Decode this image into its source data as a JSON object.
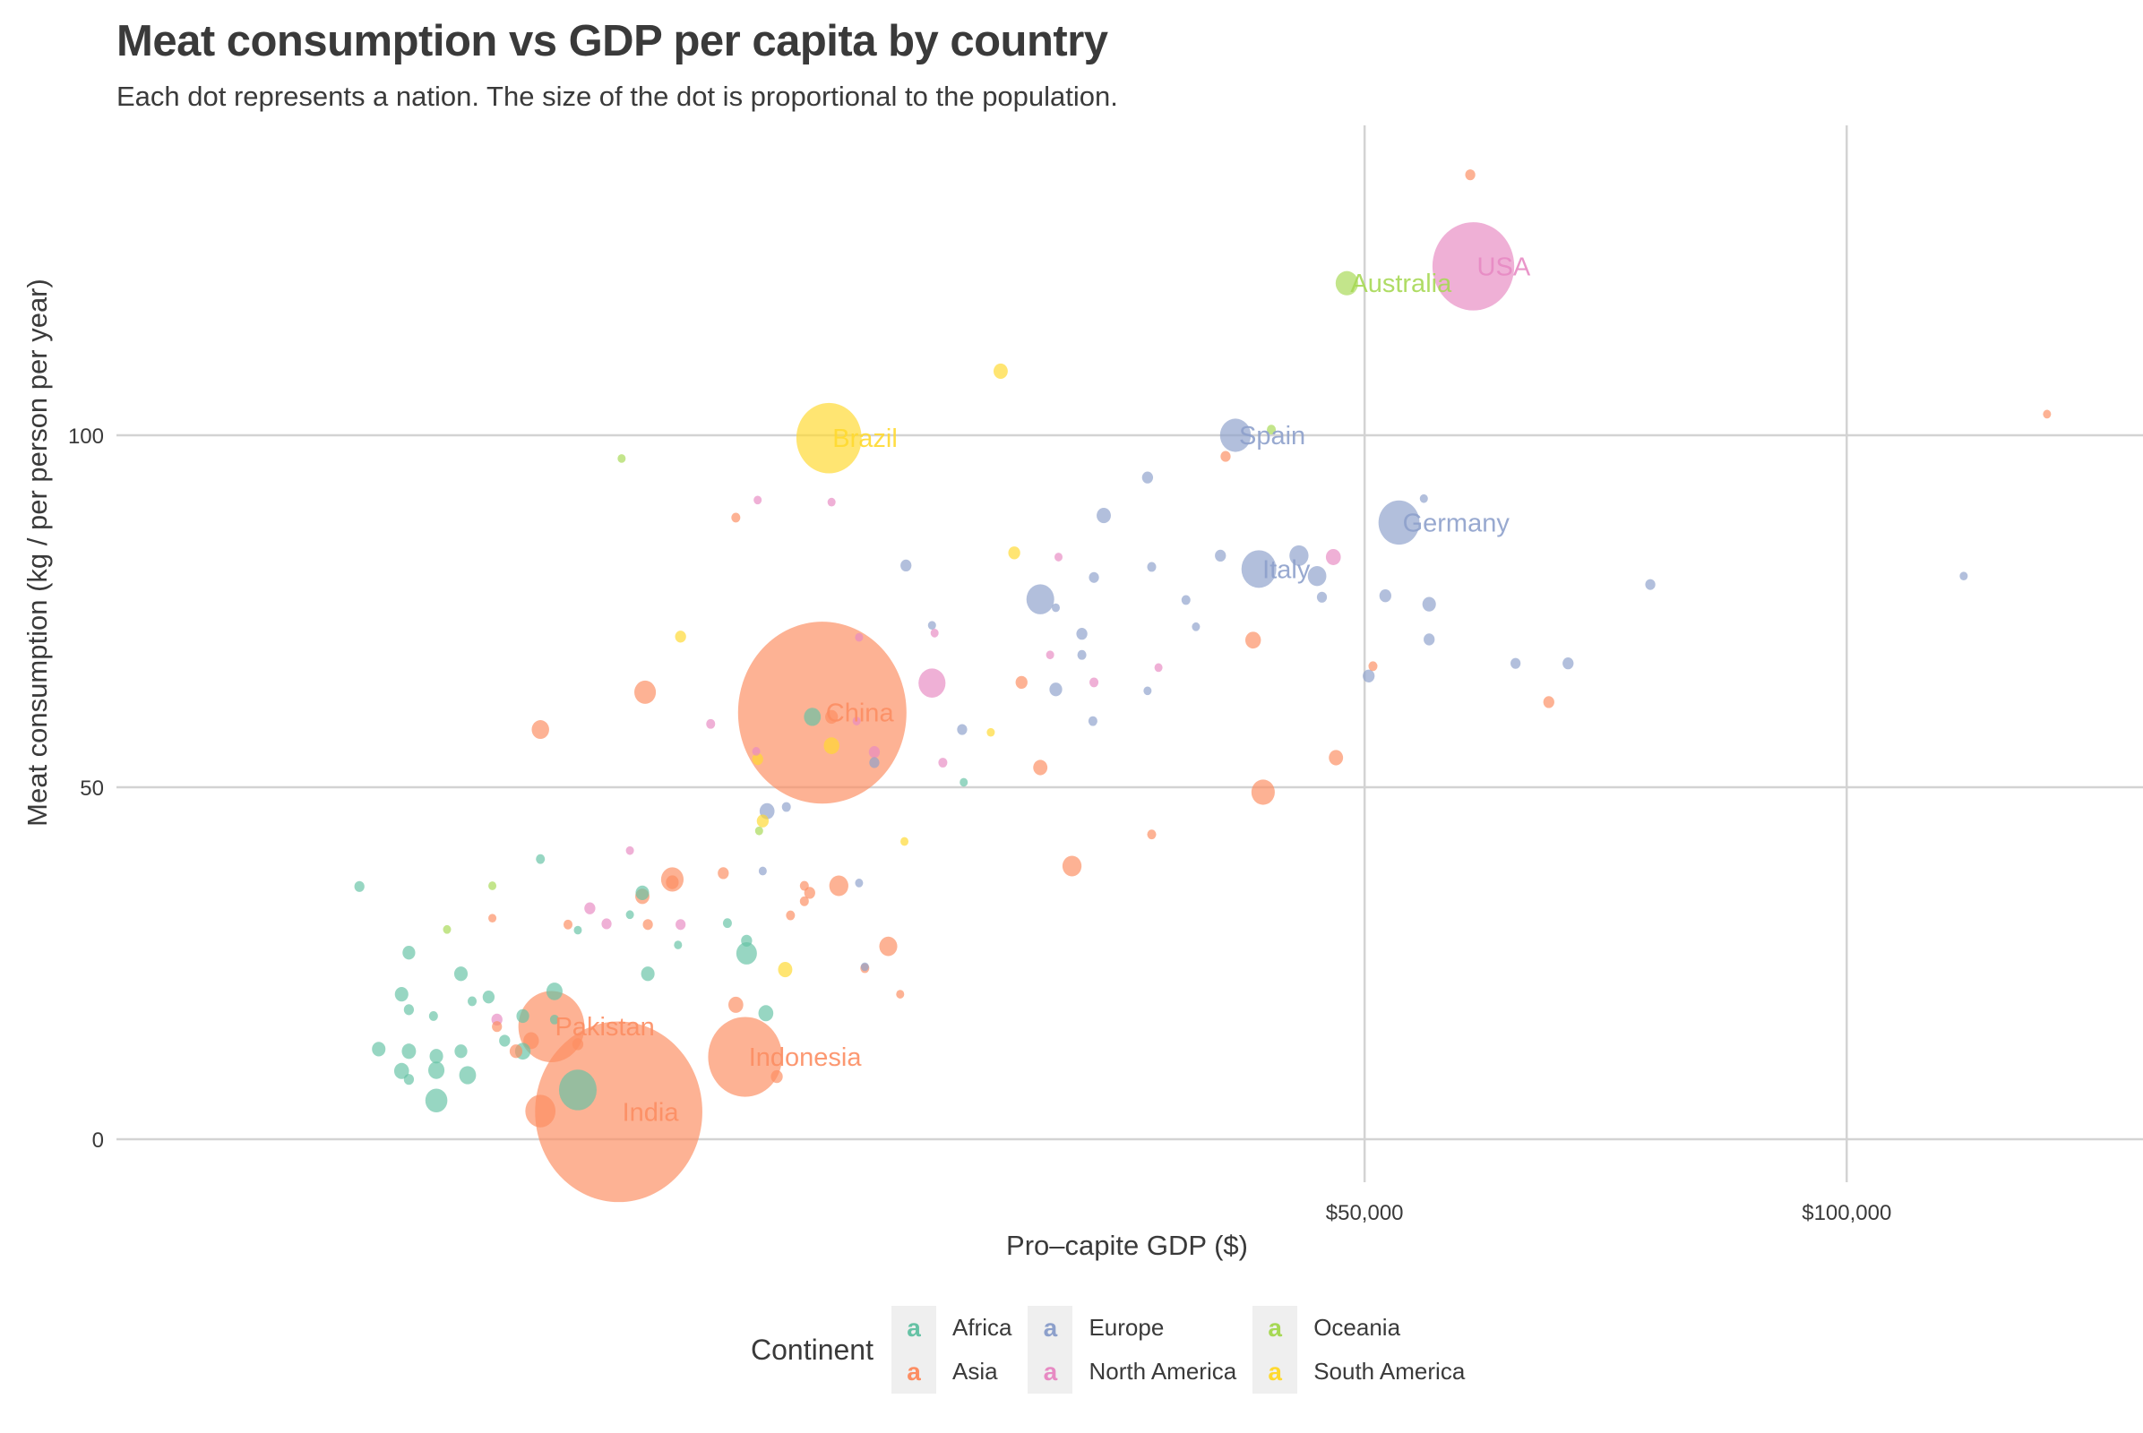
{
  "chart_data": {
    "type": "scatter",
    "title": "Meat consumption vs GDP per capita by country",
    "subtitle": "Each dot represents a nation. The size of the dot is proportional to the population.",
    "xlabel": "Pro–capite GDP ($)",
    "ylabel": "Meat consumption (kg / per person per year)",
    "x_scale": "sqrt",
    "xlim": [
      0,
      135000
    ],
    "ylim": [
      -7,
      137
    ],
    "x_ticks": [
      {
        "value": 50000,
        "label": "$50,000"
      },
      {
        "value": 100000,
        "label": "$100,000"
      }
    ],
    "y_ticks": [
      {
        "value": 0,
        "label": "0"
      },
      {
        "value": 50,
        "label": "50"
      },
      {
        "value": 100,
        "label": "100"
      }
    ],
    "grid": true,
    "size_variable": "population (millions)",
    "legend": {
      "title": "Continent",
      "placement": "bottom",
      "entries": [
        {
          "name": "Africa",
          "color": "#66c2a5",
          "glyph": "a"
        },
        {
          "name": "Asia",
          "color": "#fc8d62",
          "glyph": "a"
        },
        {
          "name": "Europe",
          "color": "#8da0cb",
          "glyph": "a"
        },
        {
          "name": "North America",
          "color": "#e78ac3",
          "glyph": "a"
        },
        {
          "name": "Oceania",
          "color": "#a6d854",
          "glyph": "a"
        },
        {
          "name": "South America",
          "color": "#ffd92f",
          "glyph": "a"
        }
      ]
    },
    "points_format": [
      "gdp_per_capita",
      "meat_kg",
      "population_millions",
      "continent",
      "label"
    ],
    "points": [
      [
        6450,
        3.9,
        1380,
        "Asia",
        "India"
      ],
      [
        14260,
        60.6,
        1400,
        "Asia",
        "China"
      ],
      [
        59780,
        124.0,
        330,
        "North America",
        "USA"
      ],
      [
        48490,
        121.6,
        25,
        "Oceania",
        "Australia"
      ],
      [
        14570,
        99.6,
        210,
        "South America",
        "Brazil"
      ],
      [
        39520,
        100.0,
        47,
        "Europe",
        "Spain"
      ],
      [
        53000,
        87.6,
        83,
        "Europe",
        "Germany"
      ],
      [
        41330,
        81.0,
        60,
        "Europe",
        "Italy"
      ],
      [
        4540,
        16.0,
        215,
        "Asia",
        "Pakistan"
      ],
      [
        10940,
        11.7,
        270,
        "Asia",
        "Indonesia"
      ],
      [
        59490,
        137.0,
        5,
        "Asia",
        ""
      ],
      [
        125820,
        103.0,
        3,
        "Asia",
        ""
      ],
      [
        114720,
        80.0,
        3,
        "Europe",
        ""
      ],
      [
        77560,
        78.8,
        5,
        "Europe",
        ""
      ],
      [
        69010,
        67.6,
        6,
        "Europe",
        ""
      ],
      [
        63810,
        67.6,
        5,
        "Europe",
        ""
      ],
      [
        67080,
        62.1,
        6,
        "Asia",
        ""
      ],
      [
        55220,
        91.0,
        2,
        "Europe",
        ""
      ],
      [
        55700,
        76.0,
        9,
        "Europe",
        ""
      ],
      [
        51800,
        77.2,
        7,
        "Europe",
        ""
      ],
      [
        55700,
        71.0,
        6,
        "Europe",
        ""
      ],
      [
        50350,
        65.8,
        7,
        "Europe",
        ""
      ],
      [
        50720,
        67.2,
        4,
        "Asia",
        ""
      ],
      [
        47570,
        54.2,
        10,
        "Asia",
        ""
      ],
      [
        46400,
        77.0,
        5,
        "Europe",
        ""
      ],
      [
        44520,
        82.9,
        18,
        "Europe",
        ""
      ],
      [
        47350,
        82.7,
        11,
        "North America",
        ""
      ],
      [
        46000,
        80.0,
        17,
        "Europe",
        ""
      ],
      [
        42310,
        100.8,
        4,
        "Oceania",
        ""
      ],
      [
        38770,
        97.0,
        5,
        "Asia",
        ""
      ],
      [
        38380,
        82.9,
        6,
        "Europe",
        ""
      ],
      [
        40880,
        70.9,
        12,
        "Asia",
        ""
      ],
      [
        41660,
        49.3,
        27,
        "Asia",
        ""
      ],
      [
        36560,
        72.8,
        3,
        "Europe",
        ""
      ],
      [
        35830,
        76.6,
        4,
        "Europe",
        ""
      ],
      [
        33860,
        67.0,
        2,
        "North America",
        ""
      ],
      [
        33380,
        81.3,
        4,
        "Europe",
        ""
      ],
      [
        33090,
        63.7,
        3,
        "Europe",
        ""
      ],
      [
        33090,
        94.0,
        6,
        "Europe",
        ""
      ],
      [
        33380,
        43.3,
        4,
        "Asia",
        ""
      ],
      [
        30100,
        88.6,
        10,
        "Europe",
        ""
      ],
      [
        29450,
        79.8,
        5,
        "Europe",
        ""
      ],
      [
        29380,
        59.4,
        4,
        "Europe",
        ""
      ],
      [
        29450,
        64.9,
        4,
        "North America",
        ""
      ],
      [
        28660,
        71.8,
        6,
        "Europe",
        ""
      ],
      [
        28660,
        68.8,
        4,
        "Europe",
        ""
      ],
      [
        28020,
        38.8,
        18,
        "Asia",
        ""
      ],
      [
        26990,
        63.9,
        8,
        "Europe",
        ""
      ],
      [
        26990,
        75.5,
        3,
        "Europe",
        ""
      ],
      [
        27160,
        82.7,
        2,
        "North America",
        ""
      ],
      [
        26020,
        76.7,
        38,
        "Europe",
        ""
      ],
      [
        26630,
        68.8,
        3,
        "North America",
        ""
      ],
      [
        26020,
        52.8,
        10,
        "Asia",
        ""
      ],
      [
        24430,
        83.3,
        7,
        "South America",
        ""
      ],
      [
        24870,
        64.9,
        7,
        "Asia",
        ""
      ],
      [
        23620,
        109.1,
        10,
        "South America",
        ""
      ],
      [
        23040,
        57.8,
        3,
        "South America",
        ""
      ],
      [
        21400,
        58.2,
        5,
        "Europe",
        ""
      ],
      [
        21490,
        50.7,
        3,
        "Africa",
        ""
      ],
      [
        20330,
        53.5,
        4,
        "North America",
        ""
      ],
      [
        19880,
        71.9,
        2,
        "North America",
        ""
      ],
      [
        19740,
        73.0,
        3,
        "Europe",
        ""
      ],
      [
        19740,
        64.8,
        36,
        "North America",
        ""
      ],
      [
        18360,
        81.5,
        6,
        "Europe",
        ""
      ],
      [
        18280,
        42.3,
        2,
        "South America",
        ""
      ],
      [
        18060,
        20.6,
        2,
        "Asia",
        ""
      ],
      [
        17450,
        27.4,
        16,
        "Asia",
        ""
      ],
      [
        16750,
        53.5,
        5,
        "Europe",
        ""
      ],
      [
        16750,
        55.0,
        6,
        "North America",
        ""
      ],
      [
        16280,
        24.3,
        4,
        "Asia",
        ""
      ],
      [
        16280,
        24.5,
        2,
        "Europe",
        ""
      ],
      [
        16000,
        71.3,
        2,
        "North America",
        ""
      ],
      [
        16000,
        36.4,
        3,
        "Europe",
        ""
      ],
      [
        15880,
        59.4,
        2,
        "North America",
        ""
      ],
      [
        15030,
        36.0,
        18,
        "Asia",
        ""
      ],
      [
        14690,
        60.0,
        8,
        "Asia",
        ""
      ],
      [
        14690,
        55.9,
        12,
        "South America",
        ""
      ],
      [
        14690,
        90.5,
        2,
        "North America",
        ""
      ],
      [
        13810,
        60.0,
        14,
        "Africa",
        ""
      ],
      [
        13690,
        35.0,
        6,
        "Asia",
        ""
      ],
      [
        13450,
        36.0,
        4,
        "Asia",
        ""
      ],
      [
        13450,
        33.8,
        4,
        "Asia",
        ""
      ],
      [
        12840,
        31.8,
        4,
        "Asia",
        ""
      ],
      [
        12660,
        47.2,
        4,
        "Europe",
        ""
      ],
      [
        12610,
        24.1,
        10,
        "South America",
        ""
      ],
      [
        12250,
        8.9,
        7,
        "Asia",
        ""
      ],
      [
        11840,
        46.6,
        11,
        "Europe",
        ""
      ],
      [
        11660,
        45.2,
        7,
        "South America",
        ""
      ],
      [
        11790,
        17.9,
        11,
        "Africa",
        ""
      ],
      [
        11660,
        38.1,
        3,
        "Europe",
        ""
      ],
      [
        11510,
        43.8,
        3,
        "Oceania",
        ""
      ],
      [
        11450,
        54.0,
        6,
        "South America",
        ""
      ],
      [
        11450,
        90.8,
        2,
        "North America",
        ""
      ],
      [
        11390,
        55.1,
        2,
        "North America",
        ""
      ],
      [
        11000,
        26.4,
        21,
        "Africa",
        ""
      ],
      [
        11000,
        28.2,
        6,
        "Africa",
        ""
      ],
      [
        10570,
        19.1,
        11,
        "Asia",
        ""
      ],
      [
        10570,
        88.3,
        4,
        "Asia",
        ""
      ],
      [
        10240,
        30.7,
        4,
        "Africa",
        ""
      ],
      [
        9600,
        59.0,
        4,
        "North America",
        ""
      ],
      [
        10080,
        37.8,
        6,
        "Asia",
        ""
      ],
      [
        8500,
        71.4,
        6,
        "South America",
        ""
      ],
      [
        8410,
        27.6,
        3,
        "Africa",
        ""
      ],
      [
        8500,
        30.5,
        5,
        "North America",
        ""
      ],
      [
        8210,
        36.9,
        25,
        "Asia",
        ""
      ],
      [
        8210,
        36.5,
        8,
        "Asia",
        ""
      ],
      [
        7290,
        63.5,
        23,
        "Asia",
        ""
      ],
      [
        7380,
        23.5,
        9,
        "Africa",
        ""
      ],
      [
        7380,
        30.5,
        5,
        "Asia",
        ""
      ],
      [
        7200,
        34.5,
        10,
        "Asia",
        ""
      ],
      [
        7200,
        35.0,
        9,
        "Africa",
        ""
      ],
      [
        6800,
        31.9,
        3,
        "Africa",
        ""
      ],
      [
        6540,
        96.7,
        2,
        "Oceania",
        ""
      ],
      [
        6800,
        41.0,
        2,
        "North America",
        ""
      ],
      [
        6080,
        30.6,
        5,
        "North America",
        ""
      ],
      [
        5590,
        32.8,
        6,
        "North America",
        ""
      ],
      [
        5250,
        7.0,
        70,
        "Africa",
        ""
      ],
      [
        5250,
        13.5,
        6,
        "Asia",
        ""
      ],
      [
        5250,
        29.7,
        2,
        "Africa",
        ""
      ],
      [
        4980,
        30.5,
        4,
        "Asia",
        ""
      ],
      [
        4620,
        21.0,
        13,
        "Africa",
        ""
      ],
      [
        4620,
        17.0,
        4,
        "Africa",
        ""
      ],
      [
        4260,
        58.2,
        15,
        "Asia",
        ""
      ],
      [
        4260,
        39.8,
        4,
        "Africa",
        ""
      ],
      [
        4260,
        4.0,
        45,
        "Asia",
        ""
      ],
      [
        4030,
        14.0,
        12,
        "Asia",
        ""
      ],
      [
        3830,
        17.5,
        8,
        "Africa",
        ""
      ],
      [
        3830,
        12.5,
        12,
        "Africa",
        ""
      ],
      [
        3670,
        12.5,
        8,
        "Asia",
        ""
      ],
      [
        3410,
        14.0,
        6,
        "Africa",
        ""
      ],
      [
        3240,
        17.0,
        6,
        "North America",
        ""
      ],
      [
        3240,
        16.0,
        5,
        "Asia",
        ""
      ],
      [
        3140,
        31.4,
        3,
        "Asia",
        ""
      ],
      [
        3140,
        36.0,
        2,
        "Oceania",
        ""
      ],
      [
        3060,
        20.2,
        7,
        "Africa",
        ""
      ],
      [
        2720,
        19.6,
        4,
        "Africa",
        ""
      ],
      [
        2630,
        9.1,
        14,
        "Africa",
        ""
      ],
      [
        2500,
        12.5,
        8,
        "Africa",
        ""
      ],
      [
        2500,
        23.5,
        9,
        "Africa",
        ""
      ],
      [
        2240,
        29.8,
        2,
        "Oceania",
        ""
      ],
      [
        2050,
        5.5,
        24,
        "Africa",
        ""
      ],
      [
        2050,
        9.8,
        13,
        "Africa",
        ""
      ],
      [
        2050,
        11.8,
        9,
        "Africa",
        ""
      ],
      [
        2000,
        17.5,
        4,
        "Africa",
        ""
      ],
      [
        1600,
        8.5,
        5,
        "Africa",
        ""
      ],
      [
        1600,
        12.5,
        10,
        "Africa",
        ""
      ],
      [
        1600,
        26.5,
        8,
        "Africa",
        ""
      ],
      [
        1600,
        18.4,
        5,
        "Africa",
        ""
      ],
      [
        1490,
        20.6,
        9,
        "Africa",
        ""
      ],
      [
        1490,
        9.7,
        11,
        "Africa",
        ""
      ],
      [
        1170,
        12.8,
        9,
        "Africa",
        ""
      ],
      [
        930,
        35.9,
        5,
        "Africa",
        ""
      ]
    ]
  }
}
